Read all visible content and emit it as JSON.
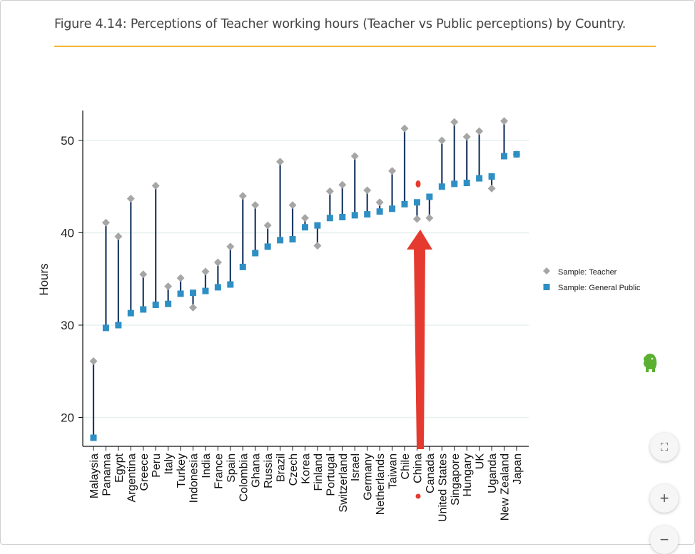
{
  "figure_title": "Figure 4.14: Perceptions of Teacher working hours (Teacher vs Public perceptions) by Country.",
  "colors": {
    "accent_rule": "#f2b632",
    "teacher": "#a6a6a6",
    "public": "#2e8fc4",
    "connector": "#1f3a64",
    "annotation": "#e53a2f",
    "grid": "#e6f0f0"
  },
  "controls": {
    "collapse_label": "⛶",
    "zoom_in_label": "+",
    "zoom_out_label": "−"
  },
  "icons": {
    "elephant": "evernote-elephant-icon",
    "arrow": "red-arrow-annotation"
  },
  "chart_data": {
    "type": "scatter",
    "title": "",
    "xlabel": "",
    "ylabel": "Hours",
    "ylim": [
      16.5,
      53.2
    ],
    "yticks": [
      20,
      30,
      40,
      50
    ],
    "grid": true,
    "legend_position": "right",
    "categories": [
      "Malaysia",
      "Panama",
      "Egypt",
      "Argentina",
      "Greece",
      "Peru",
      "Italy",
      "Turkey",
      "Indonesia",
      "India",
      "France",
      "Spain",
      "Colombia",
      "Ghana",
      "Russia",
      "Brazil",
      "Czech",
      "Korea",
      "Finland",
      "Portugal",
      "Switzerland",
      "Israel",
      "Germany",
      "Netherlands",
      "Taiwan",
      "Chile",
      "China",
      "Canada",
      "United States",
      "Singapore",
      "Hungary",
      "UK",
      "Uganda",
      "New Zealand",
      "Japan"
    ],
    "series": [
      {
        "name": "Sample: Teacher",
        "marker": "diamond",
        "values": [
          26.1,
          41.1,
          39.6,
          43.7,
          35.5,
          45.1,
          34.2,
          35.1,
          31.9,
          35.8,
          36.8,
          38.5,
          44.0,
          43.0,
          40.8,
          47.7,
          43.0,
          41.6,
          38.6,
          44.5,
          45.2,
          48.3,
          44.6,
          43.3,
          46.7,
          51.3,
          41.5,
          41.6,
          50.0,
          52.0,
          50.4,
          51.0,
          44.8,
          52.1,
          48.5
        ]
      },
      {
        "name": "Sample: General Public",
        "marker": "square",
        "values": [
          17.8,
          29.7,
          30.0,
          31.3,
          31.7,
          32.2,
          32.3,
          33.4,
          33.5,
          33.7,
          34.1,
          34.4,
          36.3,
          37.8,
          38.5,
          39.2,
          39.3,
          40.6,
          40.8,
          41.6,
          41.7,
          41.9,
          42.0,
          42.3,
          42.6,
          43.1,
          43.3,
          43.9,
          45.0,
          45.3,
          45.4,
          45.9,
          46.1,
          48.3,
          48.5
        ]
      }
    ]
  }
}
